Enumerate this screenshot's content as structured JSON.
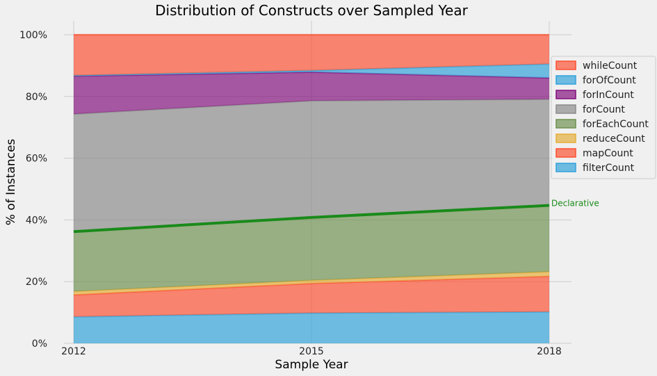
{
  "chart_data": {
    "type": "area",
    "stacked": true,
    "normalized": true,
    "title": "Distribution of Constructs over Sampled Year",
    "xlabel": "Sample Year",
    "ylabel": "% of Instances",
    "x": [
      2012,
      2015,
      2018
    ],
    "x_tick_labels": [
      "2012",
      "2015",
      "2018"
    ],
    "ylim": [
      0,
      100
    ],
    "y_ticks": [
      0,
      20,
      40,
      60,
      80,
      100
    ],
    "y_tick_labels": [
      "0%",
      "20%",
      "40%",
      "60%",
      "80%",
      "100%"
    ],
    "grid": true,
    "legend_position": "right",
    "series": [
      {
        "name": "filterCount",
        "values": [
          8.6,
          9.8,
          10.2
        ],
        "color": "#30a2da"
      },
      {
        "name": "mapCount",
        "values": [
          7.1,
          9.6,
          11.5
        ],
        "color": "#fc4f30"
      },
      {
        "name": "reduceCount",
        "values": [
          1.1,
          1.0,
          1.5
        ],
        "color": "#e5ae38"
      },
      {
        "name": "forEachCount",
        "values": [
          19.4,
          20.4,
          21.6
        ],
        "color": "#6d904f"
      },
      {
        "name": "forCount",
        "values": [
          38.1,
          37.8,
          34.3
        ],
        "color": "#8b8b8b"
      },
      {
        "name": "forInCount",
        "values": [
          12.3,
          9.3,
          6.9
        ],
        "color": "#810f7c"
      },
      {
        "name": "forOfCount",
        "values": [
          0.2,
          0.5,
          4.5
        ],
        "color": "#30a2da"
      },
      {
        "name": "whileCount",
        "values": [
          13.2,
          11.6,
          9.5
        ],
        "color": "#fc4f30"
      }
    ],
    "legend_order": [
      "whileCount",
      "forOfCount",
      "forInCount",
      "forCount",
      "forEachCount",
      "reduceCount",
      "mapCount",
      "filterCount"
    ],
    "declarative_line": {
      "label": "Declarative",
      "values": [
        36.2,
        40.8,
        44.7
      ],
      "color": "#1a8a1a"
    }
  }
}
